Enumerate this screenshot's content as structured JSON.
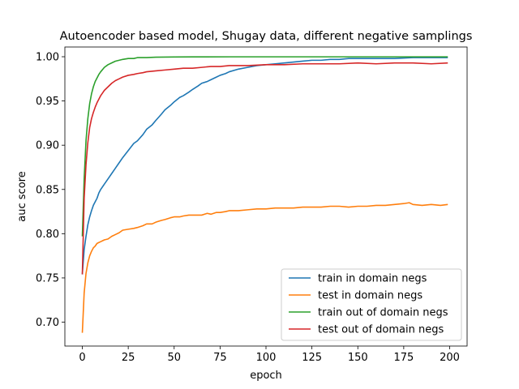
{
  "chart_data": {
    "type": "line",
    "title": "Autoencoder based model, Shugay data, different negative samplings",
    "xlabel": "epoch",
    "ylabel": "auc score",
    "xlim": [
      -9.5,
      209.5
    ],
    "ylim": [
      0.673,
      1.011
    ],
    "xticks": [
      0,
      25,
      50,
      75,
      100,
      125,
      150,
      175,
      200
    ],
    "yticks": [
      0.7,
      0.75,
      0.8,
      0.85,
      0.9,
      0.95,
      1.0
    ],
    "xtick_labels": [
      "0",
      "25",
      "50",
      "75",
      "100",
      "125",
      "150",
      "175",
      "200"
    ],
    "ytick_labels": [
      "0.70",
      "0.75",
      "0.80",
      "0.85",
      "0.90",
      "0.95",
      "1.00"
    ],
    "grid": false,
    "legend_position": "lower-right",
    "series": [
      {
        "name": "train in domain negs",
        "color": "#1f77b4",
        "x": [
          0,
          1,
          2,
          3,
          4,
          5,
          6,
          7,
          8,
          9,
          10,
          12,
          14,
          16,
          18,
          20,
          22,
          25,
          28,
          30,
          33,
          35,
          38,
          40,
          43,
          45,
          48,
          50,
          53,
          55,
          58,
          60,
          63,
          65,
          68,
          70,
          73,
          75,
          78,
          80,
          85,
          90,
          95,
          100,
          105,
          110,
          115,
          120,
          125,
          130,
          135,
          140,
          145,
          150,
          160,
          170,
          180,
          190,
          199
        ],
        "values": [
          0.754,
          0.782,
          0.797,
          0.81,
          0.819,
          0.826,
          0.832,
          0.836,
          0.84,
          0.846,
          0.85,
          0.856,
          0.862,
          0.868,
          0.874,
          0.88,
          0.886,
          0.894,
          0.902,
          0.905,
          0.912,
          0.918,
          0.923,
          0.928,
          0.935,
          0.94,
          0.945,
          0.949,
          0.954,
          0.956,
          0.96,
          0.963,
          0.967,
          0.97,
          0.972,
          0.974,
          0.977,
          0.979,
          0.981,
          0.983,
          0.986,
          0.988,
          0.99,
          0.991,
          0.992,
          0.993,
          0.994,
          0.995,
          0.996,
          0.996,
          0.997,
          0.997,
          0.998,
          0.998,
          0.998,
          0.998,
          0.999,
          0.999,
          0.999
        ]
      },
      {
        "name": "test in domain negs",
        "color": "#ff7f0e",
        "x": [
          0,
          1,
          2,
          3,
          4,
          5,
          6,
          7,
          8,
          9,
          10,
          12,
          14,
          16,
          18,
          20,
          22,
          25,
          28,
          30,
          33,
          35,
          38,
          40,
          43,
          45,
          48,
          50,
          53,
          55,
          58,
          60,
          63,
          65,
          68,
          70,
          73,
          75,
          78,
          80,
          85,
          90,
          95,
          100,
          105,
          110,
          115,
          120,
          125,
          130,
          135,
          140,
          145,
          150,
          155,
          160,
          165,
          170,
          175,
          178,
          180,
          185,
          190,
          195,
          199
        ],
        "values": [
          0.688,
          0.733,
          0.755,
          0.767,
          0.775,
          0.78,
          0.784,
          0.786,
          0.789,
          0.79,
          0.791,
          0.793,
          0.794,
          0.797,
          0.799,
          0.801,
          0.804,
          0.805,
          0.806,
          0.807,
          0.809,
          0.811,
          0.811,
          0.813,
          0.815,
          0.816,
          0.818,
          0.819,
          0.819,
          0.82,
          0.821,
          0.821,
          0.821,
          0.821,
          0.823,
          0.822,
          0.824,
          0.824,
          0.825,
          0.826,
          0.826,
          0.827,
          0.828,
          0.828,
          0.829,
          0.829,
          0.829,
          0.83,
          0.83,
          0.83,
          0.831,
          0.831,
          0.83,
          0.831,
          0.831,
          0.832,
          0.832,
          0.833,
          0.834,
          0.835,
          0.833,
          0.832,
          0.833,
          0.832,
          0.833
        ]
      },
      {
        "name": "train out of domain negs",
        "color": "#2ca02c",
        "x": [
          0,
          1,
          2,
          3,
          4,
          5,
          6,
          7,
          8,
          9,
          10,
          12,
          14,
          16,
          18,
          20,
          22,
          25,
          28,
          30,
          35,
          40,
          50,
          60,
          80,
          100,
          150,
          199
        ],
        "values": [
          0.797,
          0.862,
          0.905,
          0.93,
          0.947,
          0.958,
          0.966,
          0.972,
          0.976,
          0.98,
          0.983,
          0.988,
          0.991,
          0.993,
          0.995,
          0.996,
          0.997,
          0.998,
          0.998,
          0.999,
          0.999,
          0.9995,
          0.9997,
          0.9998,
          0.9999,
          0.9999,
          0.9999,
          0.9999
        ]
      },
      {
        "name": "test out of domain negs",
        "color": "#d62728",
        "x": [
          0,
          1,
          2,
          3,
          4,
          5,
          6,
          7,
          8,
          9,
          10,
          12,
          14,
          16,
          18,
          20,
          22,
          25,
          28,
          30,
          33,
          35,
          40,
          45,
          50,
          55,
          60,
          65,
          70,
          75,
          80,
          90,
          100,
          110,
          120,
          130,
          140,
          150,
          160,
          170,
          180,
          190,
          199
        ],
        "values": [
          0.754,
          0.84,
          0.878,
          0.903,
          0.92,
          0.93,
          0.937,
          0.943,
          0.948,
          0.952,
          0.956,
          0.962,
          0.966,
          0.97,
          0.973,
          0.975,
          0.977,
          0.979,
          0.98,
          0.981,
          0.982,
          0.983,
          0.984,
          0.985,
          0.986,
          0.987,
          0.987,
          0.988,
          0.989,
          0.989,
          0.99,
          0.99,
          0.991,
          0.991,
          0.992,
          0.992,
          0.992,
          0.993,
          0.992,
          0.993,
          0.993,
          0.992,
          0.993
        ]
      }
    ]
  }
}
